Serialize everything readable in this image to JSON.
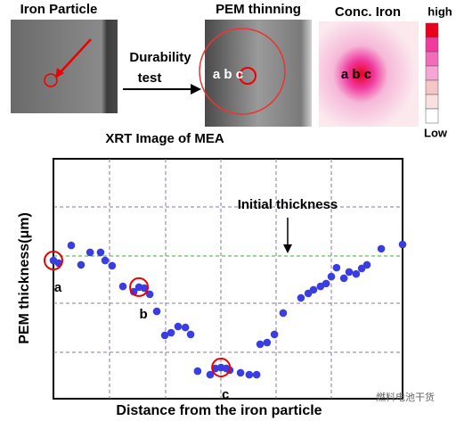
{
  "figure": {
    "panel_titles": [
      "Iron Particle",
      "PEM thinning",
      "Conc. Iron"
    ],
    "arrow_text": [
      "Durability",
      "test"
    ],
    "caption": "XRT Image of  MEA",
    "pem_labels": "a b c",
    "conc_labels": "a b c",
    "scale_high": "high",
    "scale_low": "Low",
    "watermark": "燃料电池干货"
  },
  "chart_data": {
    "type": "scatter",
    "x_label": "Distance from the iron particle",
    "y_label": "PEM thickness(μm)",
    "annotation": "Initial thickness",
    "initial_thickness": 59.5,
    "point_labels": [
      {
        "text": "a",
        "x": 0,
        "y": 57.6
      },
      {
        "text": "b",
        "x": 24.5,
        "y": 46.5
      },
      {
        "text": "c",
        "x": 48,
        "y": 13
      }
    ],
    "xlim": [
      0,
      100
    ],
    "ylim": [
      0,
      100
    ],
    "color": "#3a3ee0",
    "series": [
      {
        "name": "PEM thickness",
        "x": [
          0,
          1.5,
          5.1,
          7.9,
          10.5,
          13.5,
          14.8,
          16.8,
          19.9,
          23.0,
          24.5,
          26.0,
          27.6,
          29.6,
          31.9,
          33.7,
          35.7,
          37.8,
          39.3,
          41.3,
          44.9,
          46.4,
          48.0,
          49.5,
          50.5,
          53.6,
          56.1,
          58.2,
          59.2,
          61.2,
          63.3,
          65.8,
          70.9,
          73.0,
          74.5,
          76.5,
          78.1,
          79.6,
          81.1,
          83.2,
          84.7,
          86.7,
          88.3,
          89.8,
          93.9,
          100
        ],
        "values": [
          57.6,
          56.5,
          63.9,
          55.8,
          61.0,
          61.0,
          57.6,
          55.4,
          46.8,
          44.6,
          46.5,
          46.1,
          43.5,
          36.4,
          26.4,
          27.5,
          30.1,
          29.7,
          26.8,
          11.5,
          10.0,
          12.6,
          13.0,
          12.6,
          11.9,
          10.8,
          10.0,
          10.0,
          22.7,
          23.4,
          26.8,
          35.7,
          42.0,
          43.9,
          45.4,
          46.8,
          48.0,
          50.9,
          54.6,
          50.2,
          52.8,
          52.0,
          54.3,
          55.8,
          62.5,
          64.3
        ]
      }
    ]
  }
}
